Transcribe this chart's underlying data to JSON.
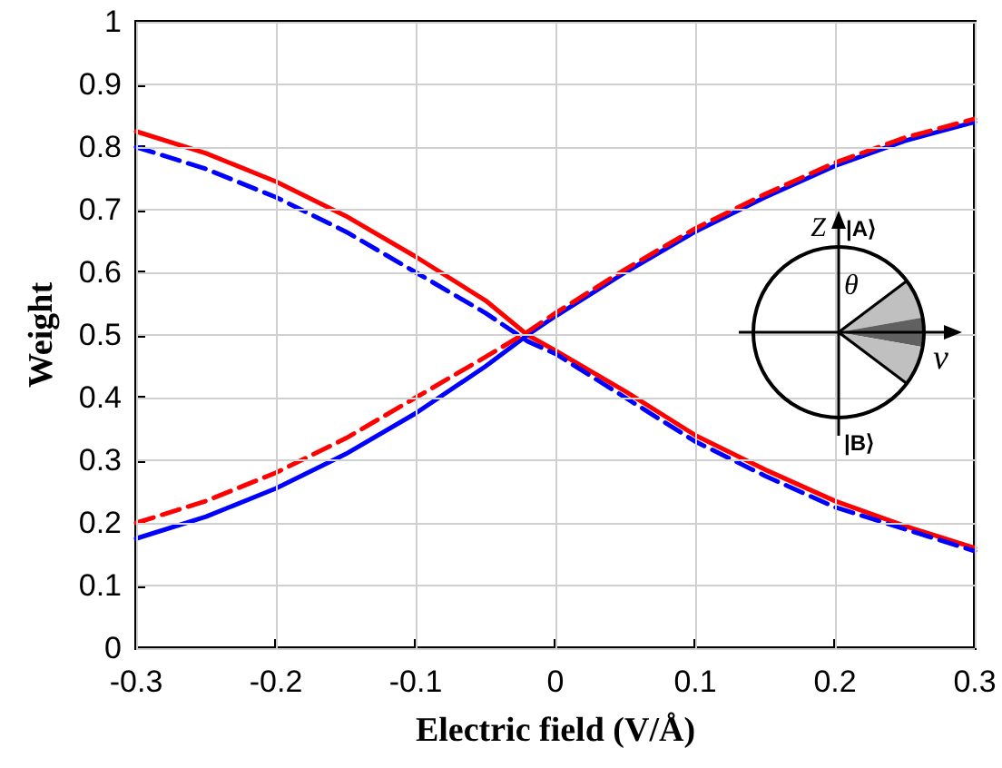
{
  "chart_data": {
    "type": "line",
    "xlabel": "Electric field (V/Å)",
    "ylabel": "Weight",
    "x": [
      -0.3,
      -0.25,
      -0.2,
      -0.15,
      -0.1,
      -0.05,
      -0.02,
      0,
      0.05,
      0.1,
      0.15,
      0.2,
      0.25,
      0.3
    ],
    "series": [
      {
        "color": "#ff0000",
        "line_style": "solid",
        "values": [
          0.825,
          0.79,
          0.745,
          0.69,
          0.625,
          0.555,
          0.5,
          0.475,
          0.41,
          0.34,
          0.285,
          0.235,
          0.195,
          0.16
        ]
      },
      {
        "color": "#0000ff",
        "line_style": "dashed",
        "values": [
          0.8,
          0.765,
          0.72,
          0.665,
          0.6,
          0.535,
          0.49,
          0.47,
          0.4,
          0.33,
          0.275,
          0.225,
          0.19,
          0.155
        ]
      },
      {
        "color": "#0000ff",
        "line_style": "solid",
        "values": [
          0.175,
          0.21,
          0.255,
          0.31,
          0.375,
          0.45,
          0.5,
          0.53,
          0.6,
          0.665,
          0.72,
          0.77,
          0.81,
          0.84
        ]
      },
      {
        "color": "#ff0000",
        "line_style": "dashed",
        "values": [
          0.2,
          0.235,
          0.28,
          0.335,
          0.4,
          0.465,
          0.505,
          0.535,
          0.605,
          0.67,
          0.725,
          0.775,
          0.815,
          0.845
        ]
      }
    ],
    "xlim": [
      -0.3,
      0.3
    ],
    "xticks": [
      -0.3,
      -0.2,
      -0.1,
      0,
      0.1,
      0.2,
      0.3
    ],
    "ylim": [
      0,
      1
    ],
    "yticks": [
      0,
      0.1,
      0.2,
      0.3,
      0.4,
      0.5,
      0.6,
      0.7,
      0.8,
      0.9,
      1
    ],
    "grid": true,
    "marker": "none",
    "annotations": [
      "Z",
      "|A⟩",
      "θ",
      "v",
      "|B⟩"
    ]
  }
}
